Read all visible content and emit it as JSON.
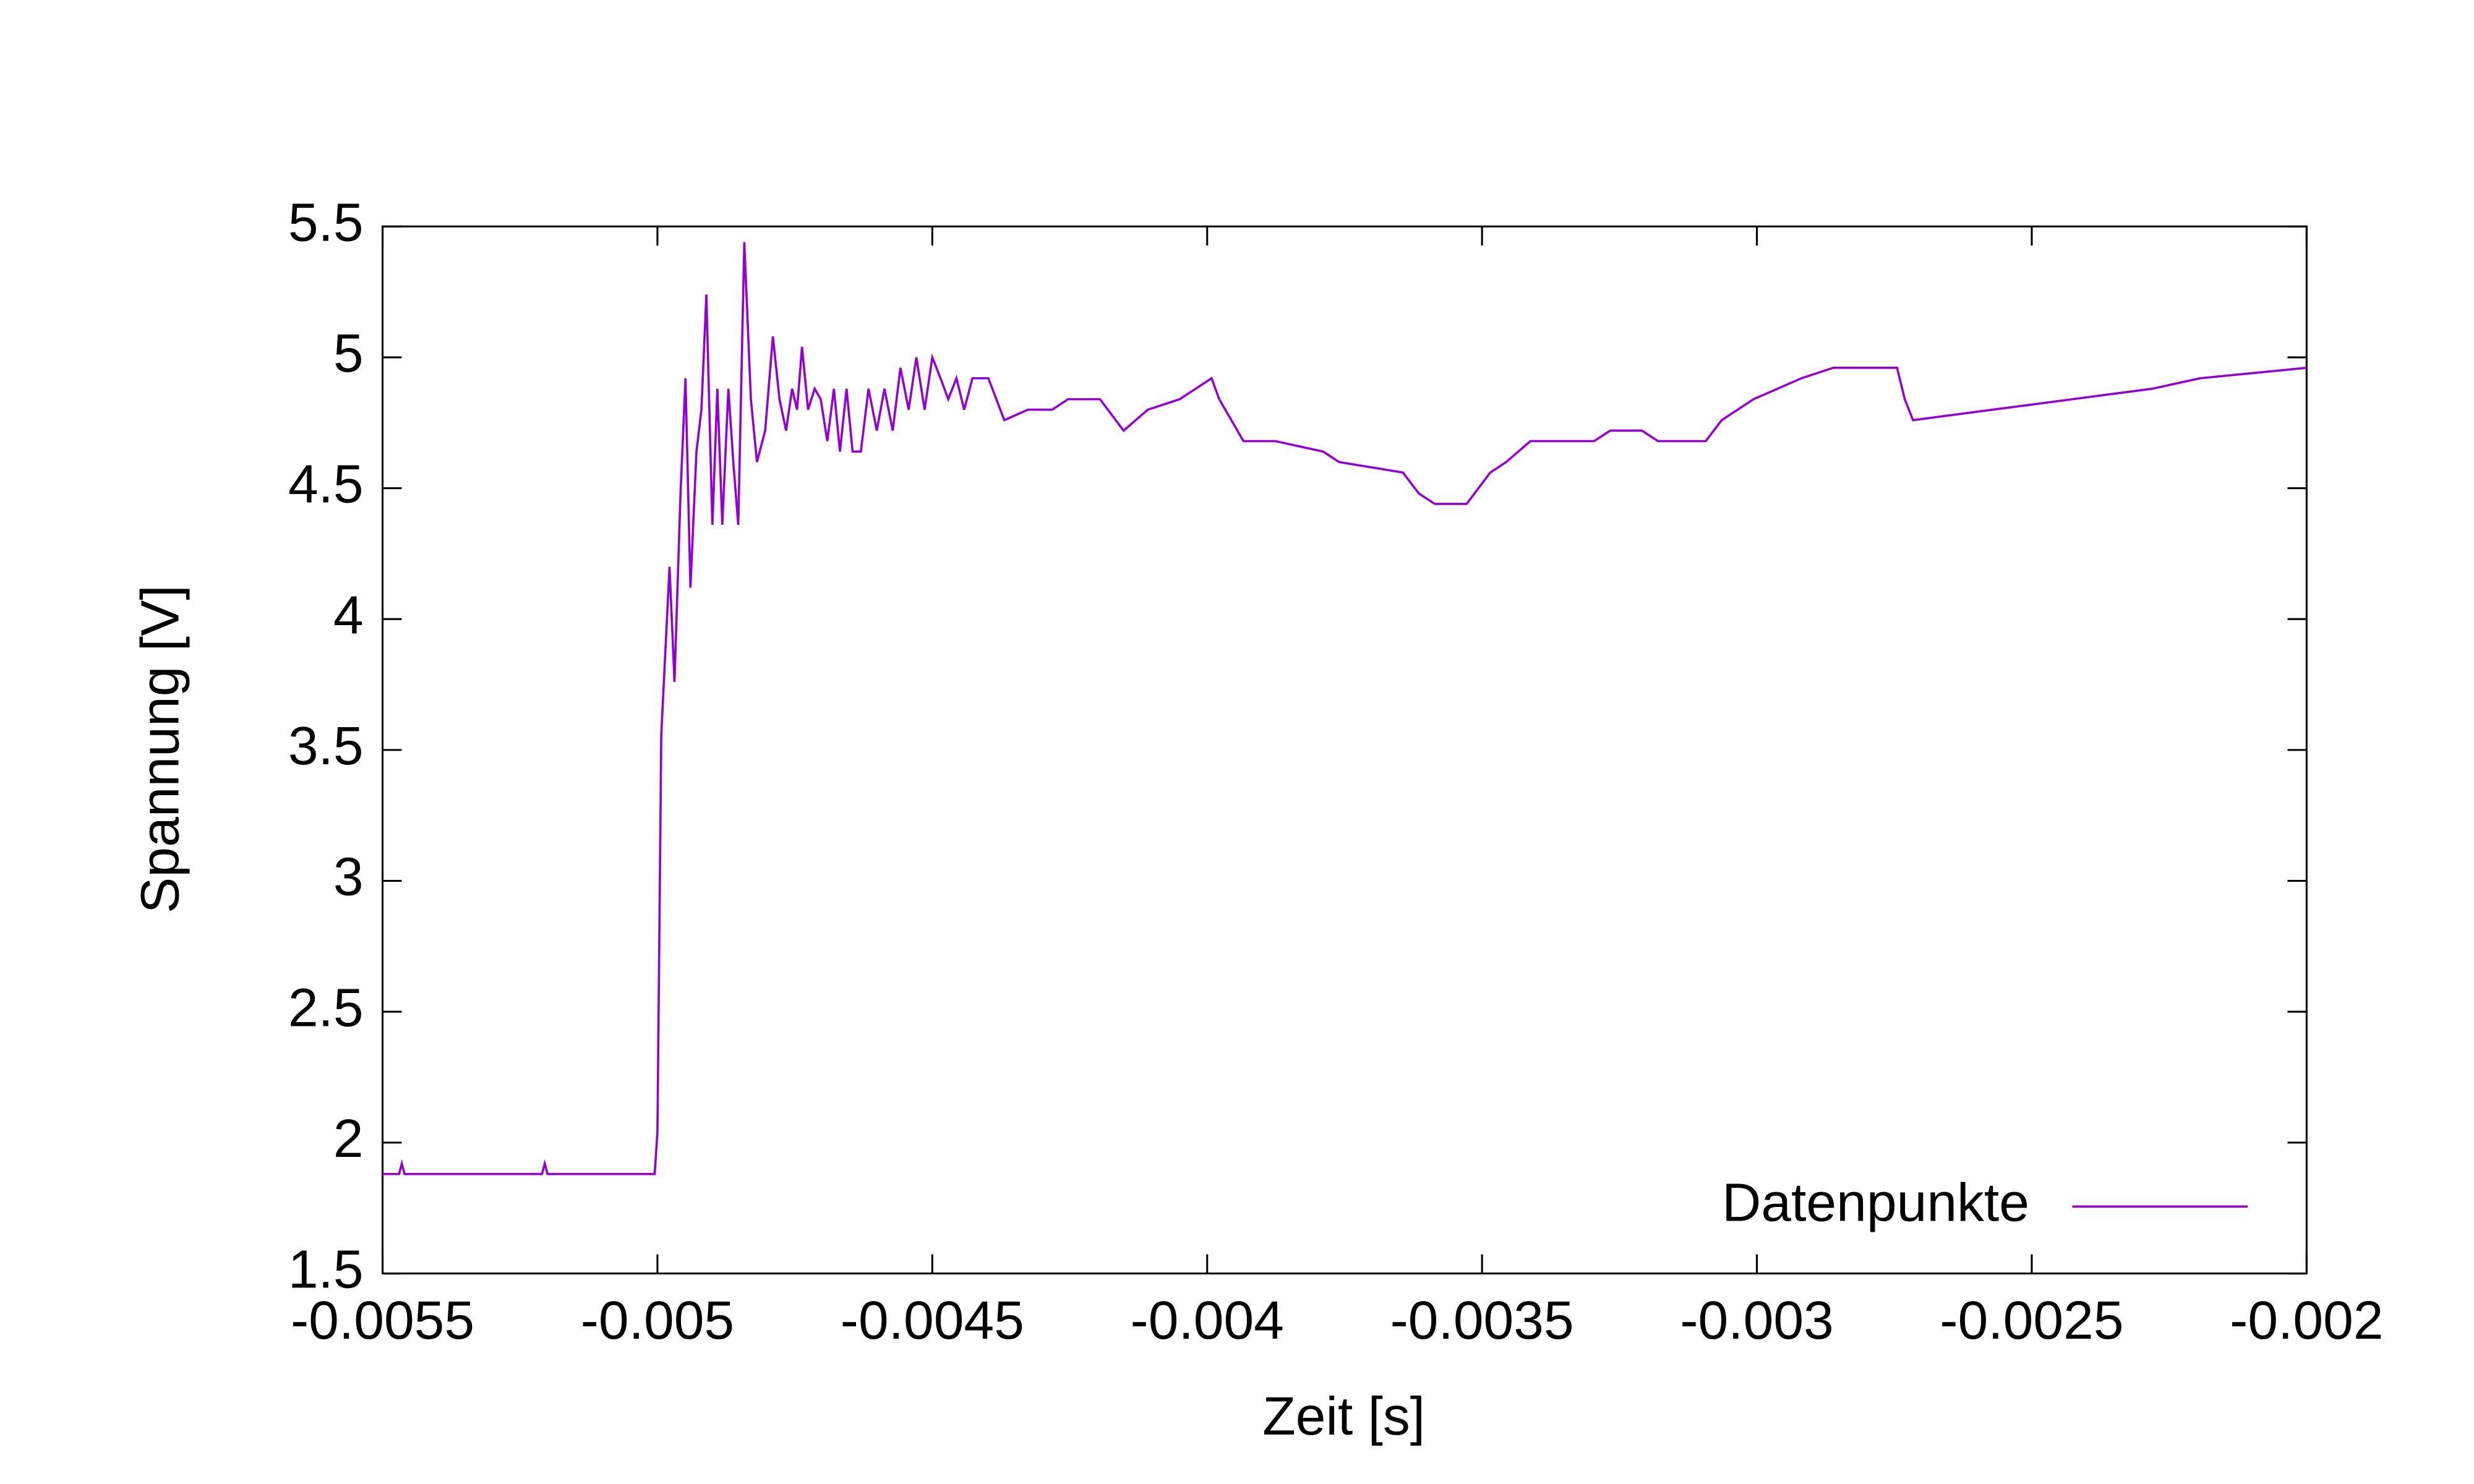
{
  "chart_data": {
    "type": "line",
    "x_label": "Zeit [s]",
    "y_label": "Spannung [V]",
    "xlim": [
      -0.0055,
      -0.002
    ],
    "xticks": [
      -0.0055,
      -0.005,
      -0.0045,
      -0.004,
      -0.0035,
      -0.003,
      -0.0025,
      -0.002
    ],
    "ylim": [
      1.5,
      5.5
    ],
    "yticks": [
      1.5,
      2,
      2.5,
      3,
      3.5,
      4,
      4.5,
      5,
      5.5
    ],
    "legend": "bottom-right",
    "series": [
      {
        "name": "Datenpunkte",
        "color": "#9400d3",
        "x": [
          -0.0055,
          -0.00547,
          -0.005465,
          -0.00546,
          -0.00521,
          -0.005205,
          -0.0052,
          -0.005005,
          -0.005,
          -0.004993,
          -0.004978,
          -0.004969,
          -0.004958,
          -0.004949,
          -0.00494,
          -0.004929,
          -0.00492,
          -0.004911,
          -0.0049,
          -0.004891,
          -0.004882,
          -0.004871,
          -0.004862,
          -0.004853,
          -0.004842,
          -0.00483,
          -0.004819,
          -0.004804,
          -0.00479,
          -0.004778,
          -0.004766,
          -0.004755,
          -0.004746,
          -0.004737,
          -0.004726,
          -0.004714,
          -0.004703,
          -0.004691,
          -0.004679,
          -0.004668,
          -0.004656,
          -0.004645,
          -0.00463,
          -0.004616,
          -0.004601,
          -0.004587,
          -0.004572,
          -0.004558,
          -0.004543,
          -0.004529,
          -0.004514,
          -0.0045,
          -0.004485,
          -0.004471,
          -0.004456,
          -0.004442,
          -0.004427,
          -0.004398,
          -0.004369,
          -0.004326,
          -0.004282,
          -0.004253,
          -0.004195,
          -0.004152,
          -0.004108,
          -0.00405,
          -0.004021,
          -0.003992,
          -0.003978,
          -0.003934,
          -0.003876,
          -0.003789,
          -0.00376,
          -0.003644,
          -0.003615,
          -0.003586,
          -0.003528,
          -0.003485,
          -0.003456,
          -0.003412,
          -0.003296,
          -0.003267,
          -0.003209,
          -0.00318,
          -0.003093,
          -0.003064,
          -0.003006,
          -0.002919,
          -0.002861,
          -0.002745,
          -0.002731,
          -0.002716,
          -0.002571,
          -0.002426,
          -0.002281,
          -0.002194,
          -0.002
        ],
        "values": [
          1.88,
          1.88,
          1.92,
          1.88,
          1.88,
          1.92,
          1.88,
          1.88,
          2.04,
          3.56,
          4.2,
          3.76,
          4.48,
          4.92,
          4.12,
          4.64,
          4.8,
          5.24,
          4.36,
          4.88,
          4.36,
          4.88,
          4.6,
          4.36,
          5.44,
          4.84,
          4.6,
          4.72,
          5.08,
          4.84,
          4.72,
          4.88,
          4.8,
          5.04,
          4.8,
          4.88,
          4.84,
          4.68,
          4.88,
          4.64,
          4.88,
          4.64,
          4.64,
          4.88,
          4.72,
          4.88,
          4.72,
          4.96,
          4.8,
          5.0,
          4.8,
          5.0,
          4.92,
          4.84,
          4.92,
          4.8,
          4.92,
          4.92,
          4.76,
          4.8,
          4.8,
          4.84,
          4.84,
          4.72,
          4.8,
          4.84,
          4.88,
          4.92,
          4.84,
          4.68,
          4.68,
          4.64,
          4.6,
          4.56,
          4.48,
          4.44,
          4.44,
          4.56,
          4.6,
          4.68,
          4.68,
          4.72,
          4.72,
          4.68,
          4.68,
          4.76,
          4.84,
          4.92,
          4.96,
          4.96,
          4.84,
          4.76,
          4.8,
          4.84,
          4.88,
          4.92,
          4.96
        ]
      }
    ]
  }
}
